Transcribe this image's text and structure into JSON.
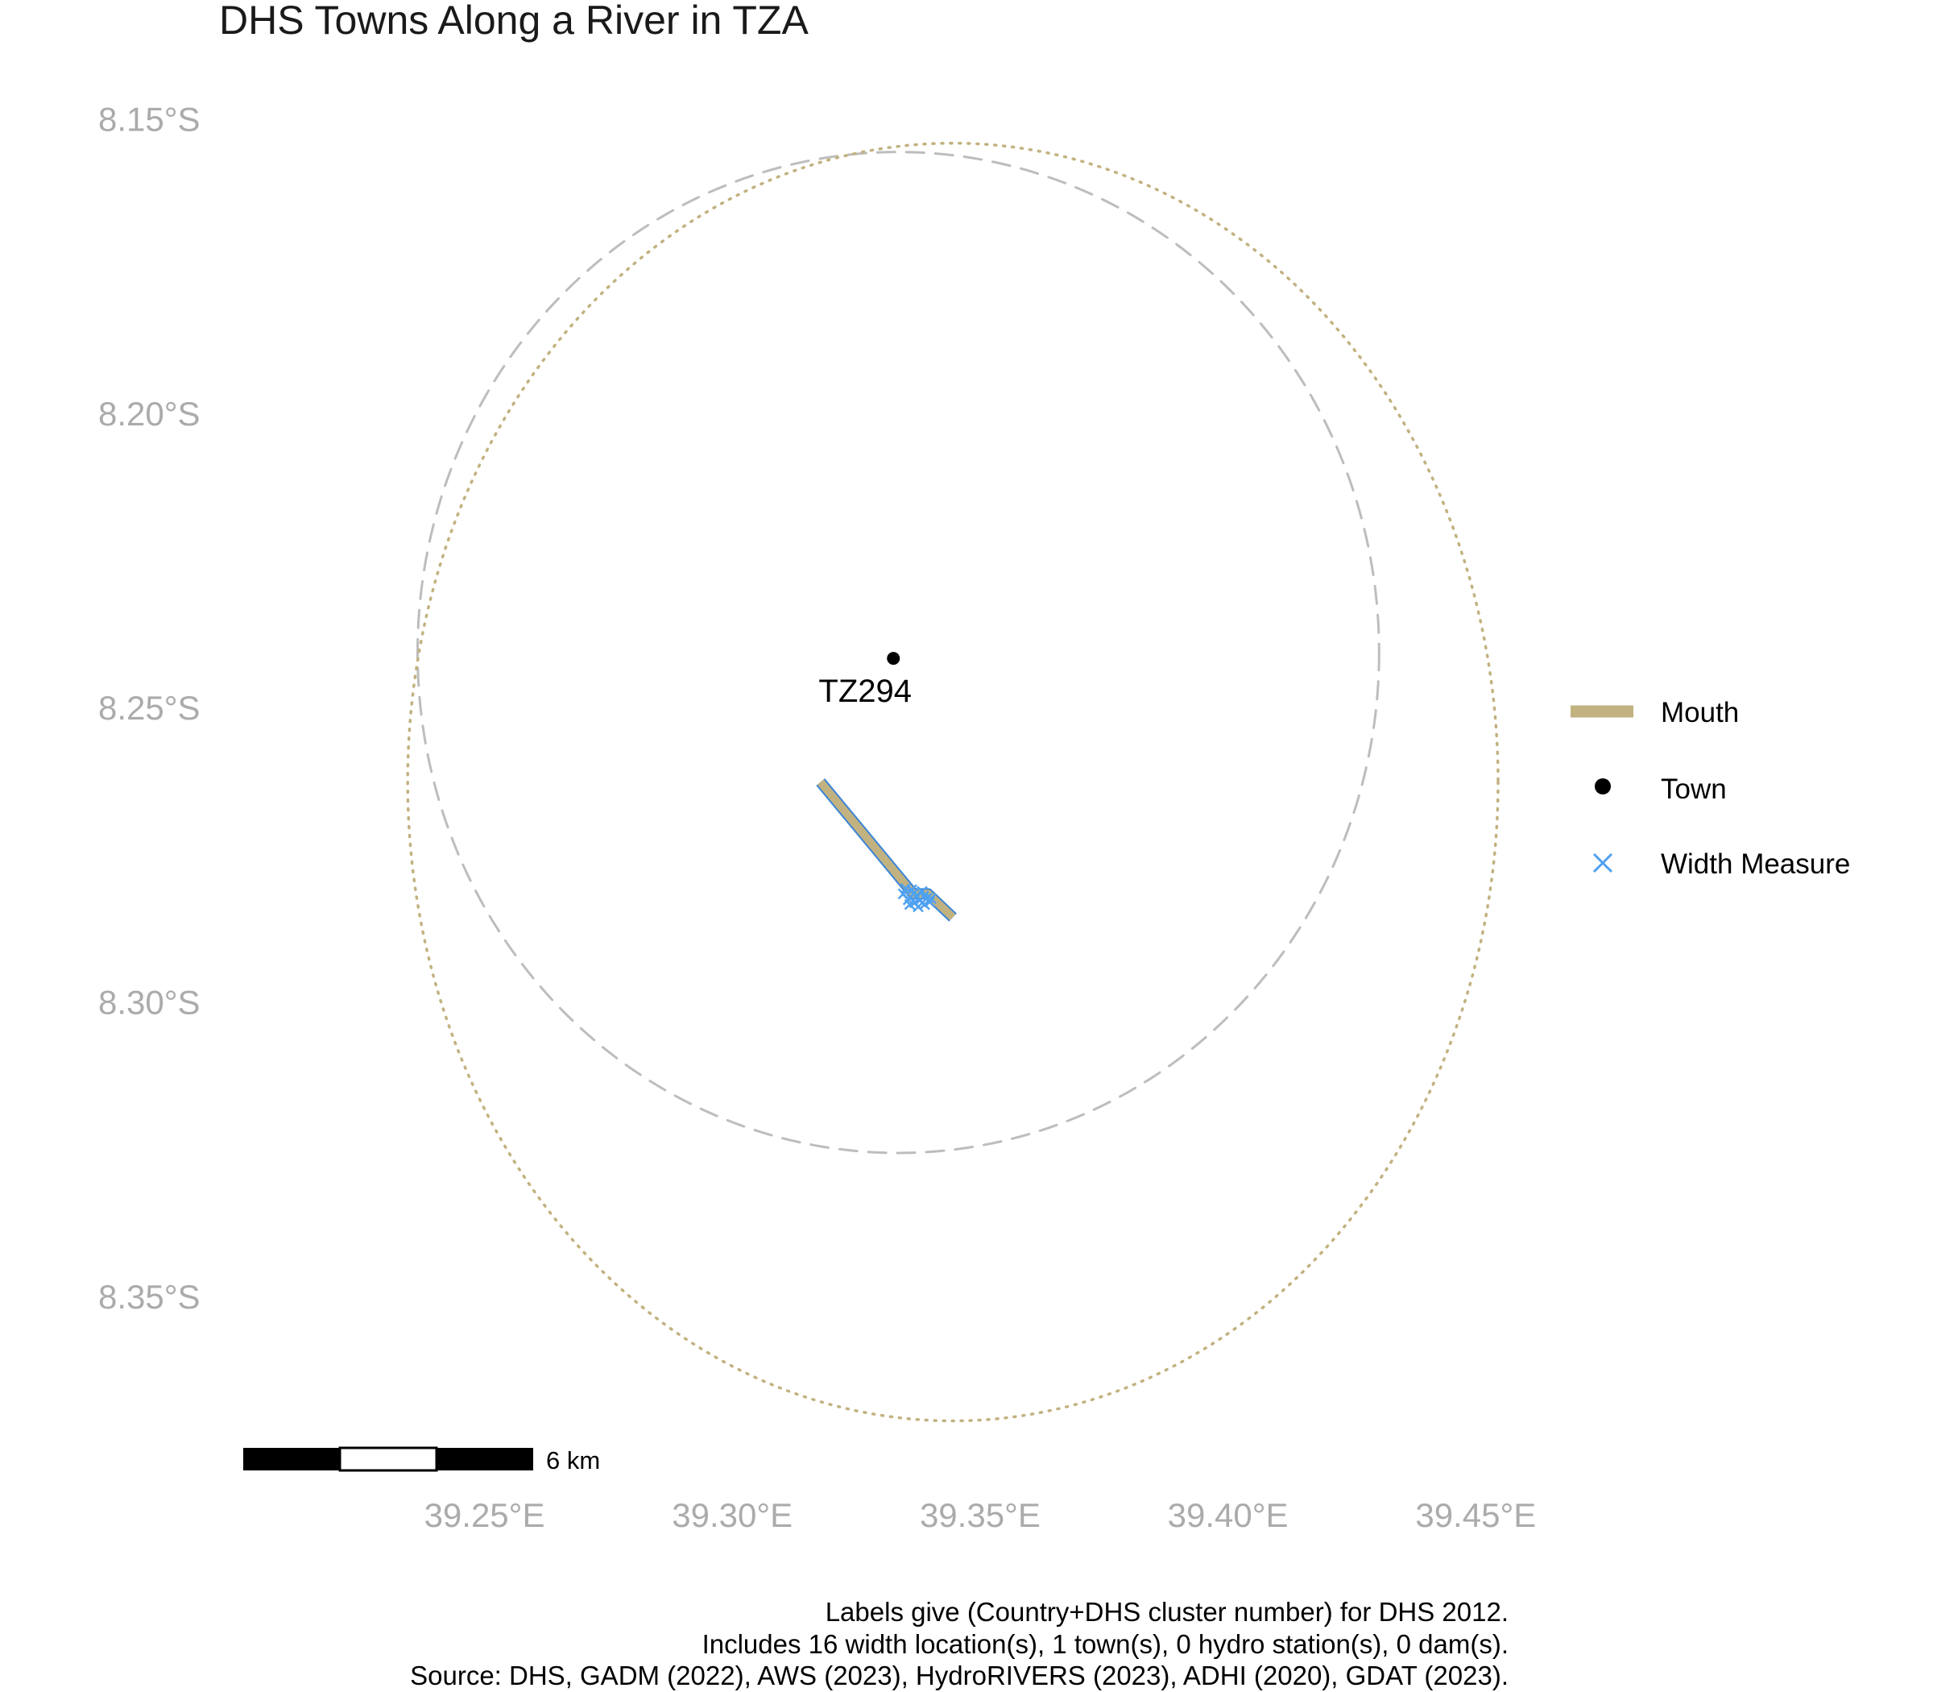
{
  "map": {
    "title": "DHS Towns Along a River in TZA",
    "colors": {
      "mouth": "#c2b280",
      "river": "#3a84d8",
      "width_measure": "#4ea1f0",
      "town": "#000000",
      "buffer_dashed": "#bdbdbd",
      "buffer_dotted": "#c2b280",
      "axis_text": "#ababab"
    },
    "axes": {
      "lon_range": [
        39.2075,
        39.4675
      ],
      "lat_range": [
        -8.376,
        -8.142
      ],
      "x_ticks": [
        {
          "value": 39.25,
          "label": "39.25°E"
        },
        {
          "value": 39.3,
          "label": "39.30°E"
        },
        {
          "value": 39.35,
          "label": "39.35°E"
        },
        {
          "value": 39.4,
          "label": "39.40°E"
        },
        {
          "value": 39.45,
          "label": "39.45°E"
        }
      ],
      "y_ticks": [
        {
          "value": -8.15,
          "label": "8.15°S"
        },
        {
          "value": -8.2,
          "label": "8.20°S"
        },
        {
          "value": -8.25,
          "label": "8.25°S"
        },
        {
          "value": -8.3,
          "label": "8.30°S"
        },
        {
          "value": -8.35,
          "label": "8.35°S"
        }
      ],
      "grid": false
    },
    "town": {
      "label": "TZ294",
      "lon": 39.3325,
      "lat": -8.2415
    },
    "river_path": [
      {
        "lon": 39.3178,
        "lat": -8.2625
      },
      {
        "lon": 39.3365,
        "lat": -8.2815
      },
      {
        "lon": 39.3395,
        "lat": -8.2815
      },
      {
        "lon": 39.3445,
        "lat": -8.2855
      }
    ],
    "width_measures": [
      {
        "lon": 39.3345,
        "lat": -8.2815
      },
      {
        "lon": 39.3355,
        "lat": -8.2825
      },
      {
        "lon": 39.3362,
        "lat": -8.2808
      },
      {
        "lon": 39.3368,
        "lat": -8.283
      },
      {
        "lon": 39.3372,
        "lat": -8.2818
      },
      {
        "lon": 39.3378,
        "lat": -8.2826
      },
      {
        "lon": 39.3383,
        "lat": -8.2811
      },
      {
        "lon": 39.3388,
        "lat": -8.2833
      },
      {
        "lon": 39.3393,
        "lat": -8.2822
      },
      {
        "lon": 39.3398,
        "lat": -8.2829
      },
      {
        "lon": 39.335,
        "lat": -8.2806
      },
      {
        "lon": 39.3358,
        "lat": -8.2833
      },
      {
        "lon": 39.3375,
        "lat": -8.2837
      },
      {
        "lon": 39.3386,
        "lat": -8.2819
      },
      {
        "lon": 39.3366,
        "lat": -8.2814
      },
      {
        "lon": 39.3401,
        "lat": -8.2823
      }
    ],
    "buffers": [
      {
        "style": "dashed",
        "lon": 39.3335,
        "lat": -8.2405,
        "rx_deg": 0.097,
        "ry_deg": 0.085
      },
      {
        "style": "dotted",
        "lon": 39.3445,
        "lat": -8.2625,
        "rx_deg": 0.11,
        "ry_deg": 0.1085
      }
    ],
    "legend": [
      {
        "key": "mouth",
        "label": "Mouth"
      },
      {
        "key": "town",
        "label": "Town"
      },
      {
        "key": "width_measure",
        "label": "Width Measure"
      }
    ],
    "scale_bar": {
      "label": "6 km"
    },
    "caption": [
      "Labels give (Country+DHS cluster number) for DHS 2012.",
      "Includes 16 width location(s), 1 town(s), 0 hydro station(s), 0 dam(s).",
      "Source: DHS, GADM (2022), AWS (2023), HydroRIVERS (2023), ADHI (2020), GDAT (2023)."
    ]
  }
}
